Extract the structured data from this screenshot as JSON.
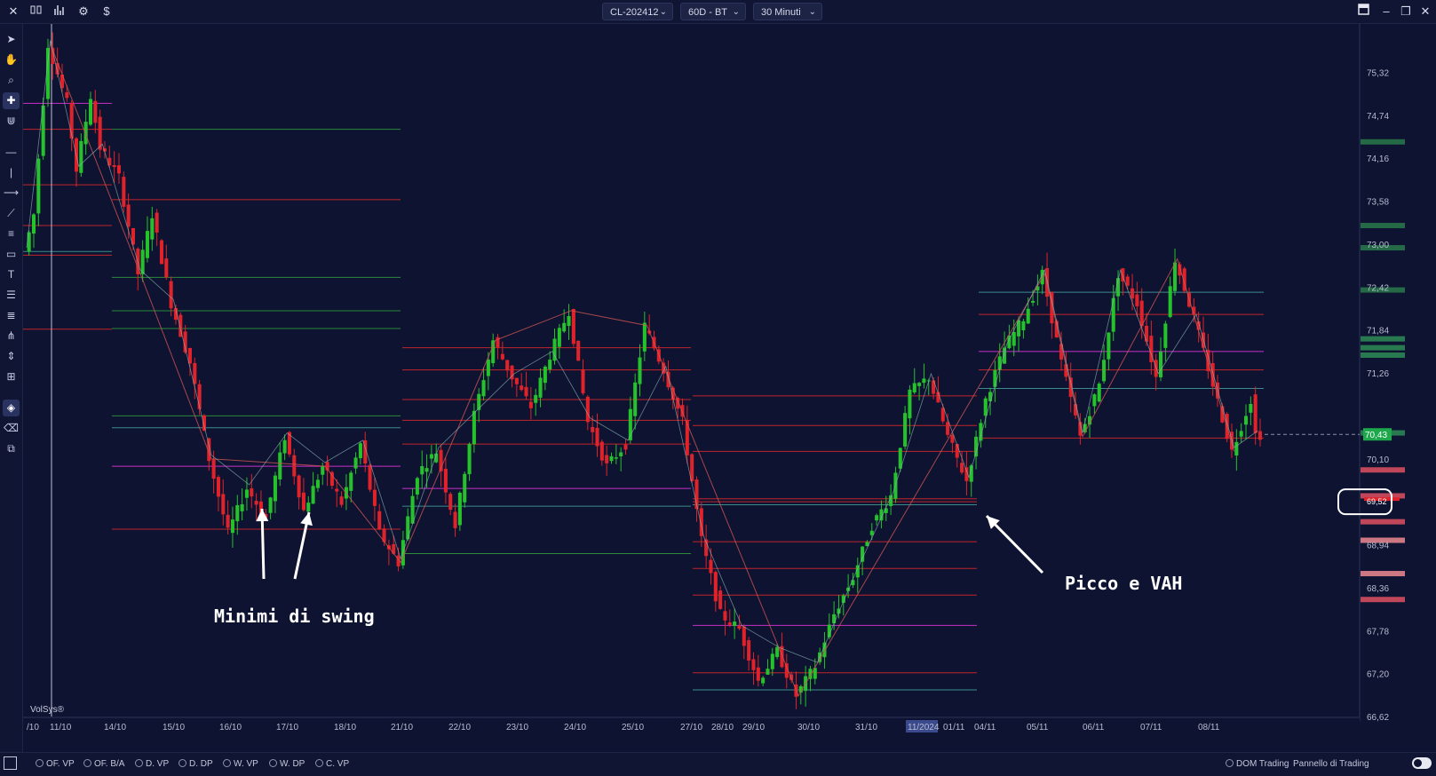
{
  "toolbar": {
    "symbol": "CL-202412",
    "timeframe": "60D - BT",
    "interval": "30 Minuti",
    "left_icons": [
      "close-icon",
      "bar-chart-icon",
      "volume-icon",
      "gear-icon",
      "dollar-icon"
    ],
    "dollar_label": "$",
    "window_icons": [
      "layout-icon",
      "minimize-icon",
      "restore-icon",
      "close-window-icon"
    ]
  },
  "left_tools": [
    "cursor-icon",
    "hand-icon",
    "zoom-icon",
    "crosshair-icon",
    "magnet-icon",
    "horizontal-line-icon",
    "vertical-line-icon",
    "ray-icon",
    "trend-line-icon",
    "fib-icon",
    "rectangle-icon",
    "text-icon",
    "lines-icon",
    "list-icon",
    "pitchfork-icon",
    "price-range-icon",
    "measure-icon",
    "lock-icon",
    "eraser-icon",
    "layers-icon"
  ],
  "chart_data": {
    "type": "candlestick",
    "instrument": "CL-202412",
    "x_ticks": [
      "/10",
      "11/10",
      "14/10",
      "15/10",
      "16/10",
      "17/10",
      "18/10",
      "21/10",
      "22/10",
      "23/10",
      "24/10",
      "25/10",
      "27/10",
      "28/10",
      "29/10",
      "30/10",
      "31/10",
      "11/2024",
      "01/11",
      "04/11",
      "05/11",
      "06/11",
      "07/11",
      "08/11"
    ],
    "highlighted_tick": "11/2024",
    "y_ticks": [
      "75,32",
      "74,74",
      "74,16",
      "73,58",
      "73,00",
      "72,42",
      "71,84",
      "71,26",
      "70,10",
      "68,94",
      "68,36",
      "67,78",
      "67,20",
      "66,62"
    ],
    "ylim": [
      66.62,
      75.9
    ],
    "current_price": "70,43",
    "current_price_value": 70.43,
    "hidden_price_label": "69,52",
    "swing_path": [
      [
        0,
        72.9
      ],
      [
        2,
        73.4
      ],
      [
        5,
        75.7
      ],
      [
        9,
        74.9
      ],
      [
        11,
        74.0
      ],
      [
        14,
        75.0
      ],
      [
        16,
        74.3
      ],
      [
        20,
        73.9
      ],
      [
        24,
        72.6
      ],
      [
        27,
        73.4
      ],
      [
        31,
        72.2
      ],
      [
        35,
        71.4
      ],
      [
        39,
        70.1
      ],
      [
        43,
        69.1
      ],
      [
        47,
        69.7
      ],
      [
        51,
        69.3
      ],
      [
        55,
        70.4
      ],
      [
        59,
        69.4
      ],
      [
        63,
        70.0
      ],
      [
        67,
        69.5
      ],
      [
        71,
        70.3
      ],
      [
        75,
        69.1
      ],
      [
        79,
        68.7
      ],
      [
        83,
        69.9
      ],
      [
        87,
        70.2
      ],
      [
        91,
        69.2
      ],
      [
        95,
        70.7
      ],
      [
        99,
        71.7
      ],
      [
        103,
        71.2
      ],
      [
        107,
        70.8
      ],
      [
        111,
        71.5
      ],
      [
        115,
        72.1
      ],
      [
        119,
        70.6
      ],
      [
        123,
        70.0
      ],
      [
        127,
        70.3
      ],
      [
        131,
        71.9
      ],
      [
        135,
        71.3
      ],
      [
        139,
        70.6
      ],
      [
        143,
        69.0
      ],
      [
        147,
        68.0
      ],
      [
        151,
        67.8
      ],
      [
        155,
        67.1
      ],
      [
        159,
        67.5
      ],
      [
        163,
        66.9
      ],
      [
        167,
        67.3
      ],
      [
        171,
        68.0
      ],
      [
        175,
        68.5
      ],
      [
        179,
        69.2
      ],
      [
        183,
        69.6
      ],
      [
        187,
        71.0
      ],
      [
        191,
        71.2
      ],
      [
        195,
        70.4
      ],
      [
        199,
        69.8
      ],
      [
        203,
        70.9
      ],
      [
        207,
        71.6
      ],
      [
        211,
        72.0
      ],
      [
        215,
        72.6
      ],
      [
        219,
        71.4
      ],
      [
        223,
        70.4
      ],
      [
        227,
        71.1
      ],
      [
        231,
        72.6
      ],
      [
        235,
        72.2
      ],
      [
        239,
        71.2
      ],
      [
        243,
        72.8
      ],
      [
        247,
        72.0
      ],
      [
        251,
        71.1
      ],
      [
        255,
        70.2
      ],
      [
        259,
        70.9
      ],
      [
        260,
        70.43
      ]
    ]
  },
  "annotations": {
    "swing_lows": "Minimi di swing",
    "peak_vah": "Picco e VAH"
  },
  "watermark": "VolSys®",
  "status_items": [
    "OF. VP",
    "OF. B/A",
    "D. VP",
    "D. DP",
    "W. VP",
    "W. DP",
    "C. VP"
  ],
  "right_status": {
    "dom": "DOM Trading",
    "panel": "Pannello di Trading"
  },
  "colors": {
    "background": "#0d1330",
    "bull": "#25c22c",
    "bear": "#e0232a",
    "level_red": "#c0242b",
    "level_green": "#2c8a3a",
    "level_magenta": "#c830c8",
    "level_teal": "#3d8c8c",
    "price_tag": "#1ca84b"
  }
}
